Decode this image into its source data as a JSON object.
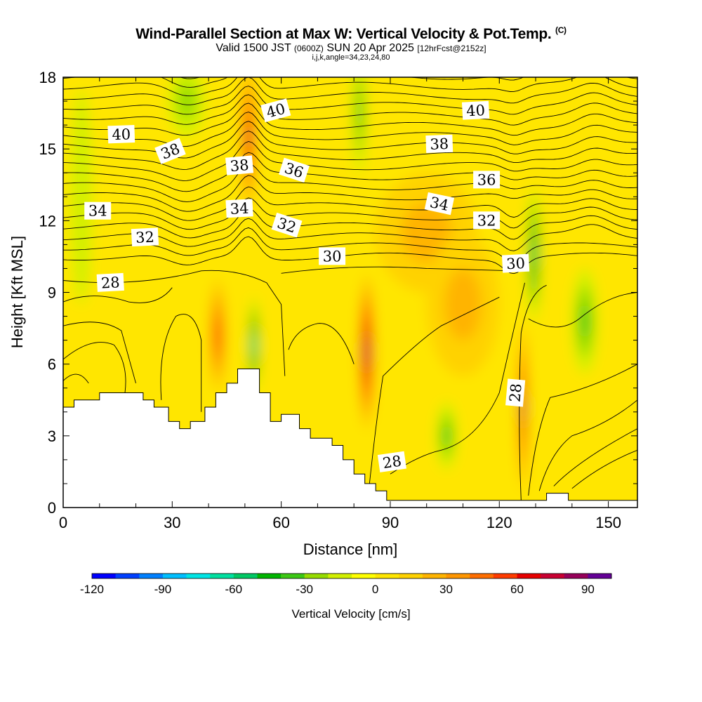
{
  "title": {
    "main": "Wind-Parallel Section at Max W: Vertical Velocity & Pot.Temp.",
    "copyright": "(C)",
    "valid": "Valid 1500 JST",
    "valid_z": "(0600Z)",
    "valid_date": "SUN 20 Apr 2025",
    "forecast": "[12hrFcst@2152z]",
    "indices": "i,j,k,angle=34,23,24,80"
  },
  "chart_data": {
    "type": "heatmap",
    "xlabel": "Distance [nm]",
    "ylabel": "Height [Kft MSL]",
    "xlim": [
      0,
      158
    ],
    "ylim": [
      0,
      18
    ],
    "x_ticks": [
      "0",
      "30",
      "60",
      "90",
      "120",
      "150"
    ],
    "y_ticks": [
      "0",
      "3",
      "6",
      "9",
      "12",
      "15",
      "18"
    ],
    "colorbar": {
      "label": "Vertical Velocity [cm/s]",
      "range": [
        -120,
        100
      ],
      "step": 10,
      "tick_labels": [
        "-120",
        "-90",
        "-60",
        "-30",
        "0",
        "30",
        "60",
        "90"
      ],
      "colors": [
        "#0000ff",
        "#0040ff",
        "#0080ff",
        "#00bfff",
        "#00e5e5",
        "#00e0a0",
        "#00c864",
        "#00b400",
        "#3cc814",
        "#96dc00",
        "#d2f000",
        "#ffff00",
        "#ffe600",
        "#ffd200",
        "#ffb400",
        "#ff9600",
        "#ff6e00",
        "#ff3c00",
        "#e60000",
        "#c80032",
        "#96005a",
        "#640096"
      ]
    },
    "terrain": [
      [
        0,
        4.2
      ],
      [
        3,
        4.2
      ],
      [
        3,
        4.5
      ],
      [
        10,
        4.5
      ],
      [
        10,
        4.8
      ],
      [
        22,
        4.8
      ],
      [
        22,
        4.5
      ],
      [
        25,
        4.5
      ],
      [
        25,
        4.2
      ],
      [
        29,
        4.2
      ],
      [
        29,
        3.6
      ],
      [
        32,
        3.6
      ],
      [
        32,
        3.3
      ],
      [
        35,
        3.3
      ],
      [
        35,
        3.6
      ],
      [
        39,
        3.6
      ],
      [
        39,
        4.2
      ],
      [
        42,
        4.2
      ],
      [
        42,
        4.8
      ],
      [
        45,
        4.8
      ],
      [
        45,
        5.2
      ],
      [
        48,
        5.2
      ],
      [
        48,
        5.8
      ],
      [
        54,
        5.8
      ],
      [
        54,
        4.8
      ],
      [
        57,
        4.8
      ],
      [
        57,
        3.6
      ],
      [
        60,
        3.6
      ],
      [
        60,
        3.9
      ],
      [
        65,
        3.9
      ],
      [
        65,
        3.3
      ],
      [
        68,
        3.3
      ],
      [
        68,
        2.9
      ],
      [
        74,
        2.9
      ],
      [
        74,
        2.6
      ],
      [
        77,
        2.6
      ],
      [
        77,
        2.0
      ],
      [
        80,
        2.0
      ],
      [
        80,
        1.4
      ],
      [
        83,
        1.4
      ],
      [
        83,
        1.0
      ],
      [
        86,
        1.0
      ],
      [
        86,
        0.7
      ],
      [
        89,
        0.7
      ],
      [
        89,
        0.3
      ],
      [
        133,
        0.3
      ],
      [
        133,
        0.6
      ],
      [
        139,
        0.6
      ],
      [
        139,
        0.3
      ],
      [
        158,
        0.3
      ]
    ],
    "w_cells": [
      {
        "x": 51,
        "y": 15.5,
        "rx": 2.2,
        "ry": 3.2,
        "w": 65
      },
      {
        "x": 42.5,
        "y": 7.2,
        "rx": 2.5,
        "ry": 2.4,
        "w": 50
      },
      {
        "x": 52.5,
        "y": 6.8,
        "rx": 1.5,
        "ry": 2.0,
        "w": -55
      },
      {
        "x": 83.5,
        "y": 6.5,
        "rx": 2.3,
        "ry": 3.3,
        "w": 75
      },
      {
        "x": 126.5,
        "y": 4.2,
        "rx": 1.4,
        "ry": 3.6,
        "w": 75
      },
      {
        "x": 129.5,
        "y": 10.6,
        "rx": 2.0,
        "ry": 2.8,
        "w": -45
      },
      {
        "x": 143.5,
        "y": 7.8,
        "rx": 3.5,
        "ry": 2.2,
        "w": -30
      },
      {
        "x": 105.5,
        "y": 3.0,
        "rx": 2.8,
        "ry": 1.4,
        "w": -25
      },
      {
        "x": 81.5,
        "y": 16.5,
        "rx": 2.0,
        "ry": 2.5,
        "w": -30
      },
      {
        "x": 34,
        "y": 17,
        "rx": 5,
        "ry": 1.5,
        "w": -15
      },
      {
        "x": 100,
        "y": 11.5,
        "rx": 14,
        "ry": 2.5,
        "w": 18
      },
      {
        "x": 110,
        "y": 8.5,
        "rx": 10,
        "ry": 3.0,
        "w": 15
      },
      {
        "x": 5,
        "y": 13,
        "rx": 3,
        "ry": 4.5,
        "w": -12
      }
    ],
    "theta_labels": [
      {
        "text": "40",
        "x": 16,
        "y": 15.6,
        "angle": -2
      },
      {
        "text": "40",
        "x": 58.5,
        "y": 16.6,
        "angle": -15
      },
      {
        "text": "40",
        "x": 113.5,
        "y": 16.6,
        "angle": -3
      },
      {
        "text": "38",
        "x": 29.5,
        "y": 14.9,
        "angle": -22
      },
      {
        "text": "38",
        "x": 48.5,
        "y": 14.3,
        "angle": -5
      },
      {
        "text": "38",
        "x": 103.5,
        "y": 15.2,
        "angle": -2
      },
      {
        "text": "36",
        "x": 63.5,
        "y": 14.1,
        "angle": 18
      },
      {
        "text": "36",
        "x": 116.5,
        "y": 13.7,
        "angle": 0
      },
      {
        "text": "34",
        "x": 9.5,
        "y": 12.4,
        "angle": 0
      },
      {
        "text": "34",
        "x": 48.5,
        "y": 12.5,
        "angle": -3
      },
      {
        "text": "34",
        "x": 103.5,
        "y": 12.7,
        "angle": 12
      },
      {
        "text": "32",
        "x": 22.5,
        "y": 11.3,
        "angle": -3
      },
      {
        "text": "32",
        "x": 61.5,
        "y": 11.8,
        "angle": 18
      },
      {
        "text": "32",
        "x": 116.5,
        "y": 12.0,
        "angle": 0
      },
      {
        "text": "30",
        "x": 74,
        "y": 10.5,
        "angle": 0
      },
      {
        "text": "30",
        "x": 124.5,
        "y": 10.2,
        "angle": -3
      },
      {
        "text": "28",
        "x": 13,
        "y": 9.4,
        "angle": -3
      },
      {
        "text": "28",
        "x": 90.5,
        "y": 1.9,
        "angle": -8
      },
      {
        "text": "28",
        "x": 124.5,
        "y": 4.8,
        "angle": -85
      }
    ]
  }
}
